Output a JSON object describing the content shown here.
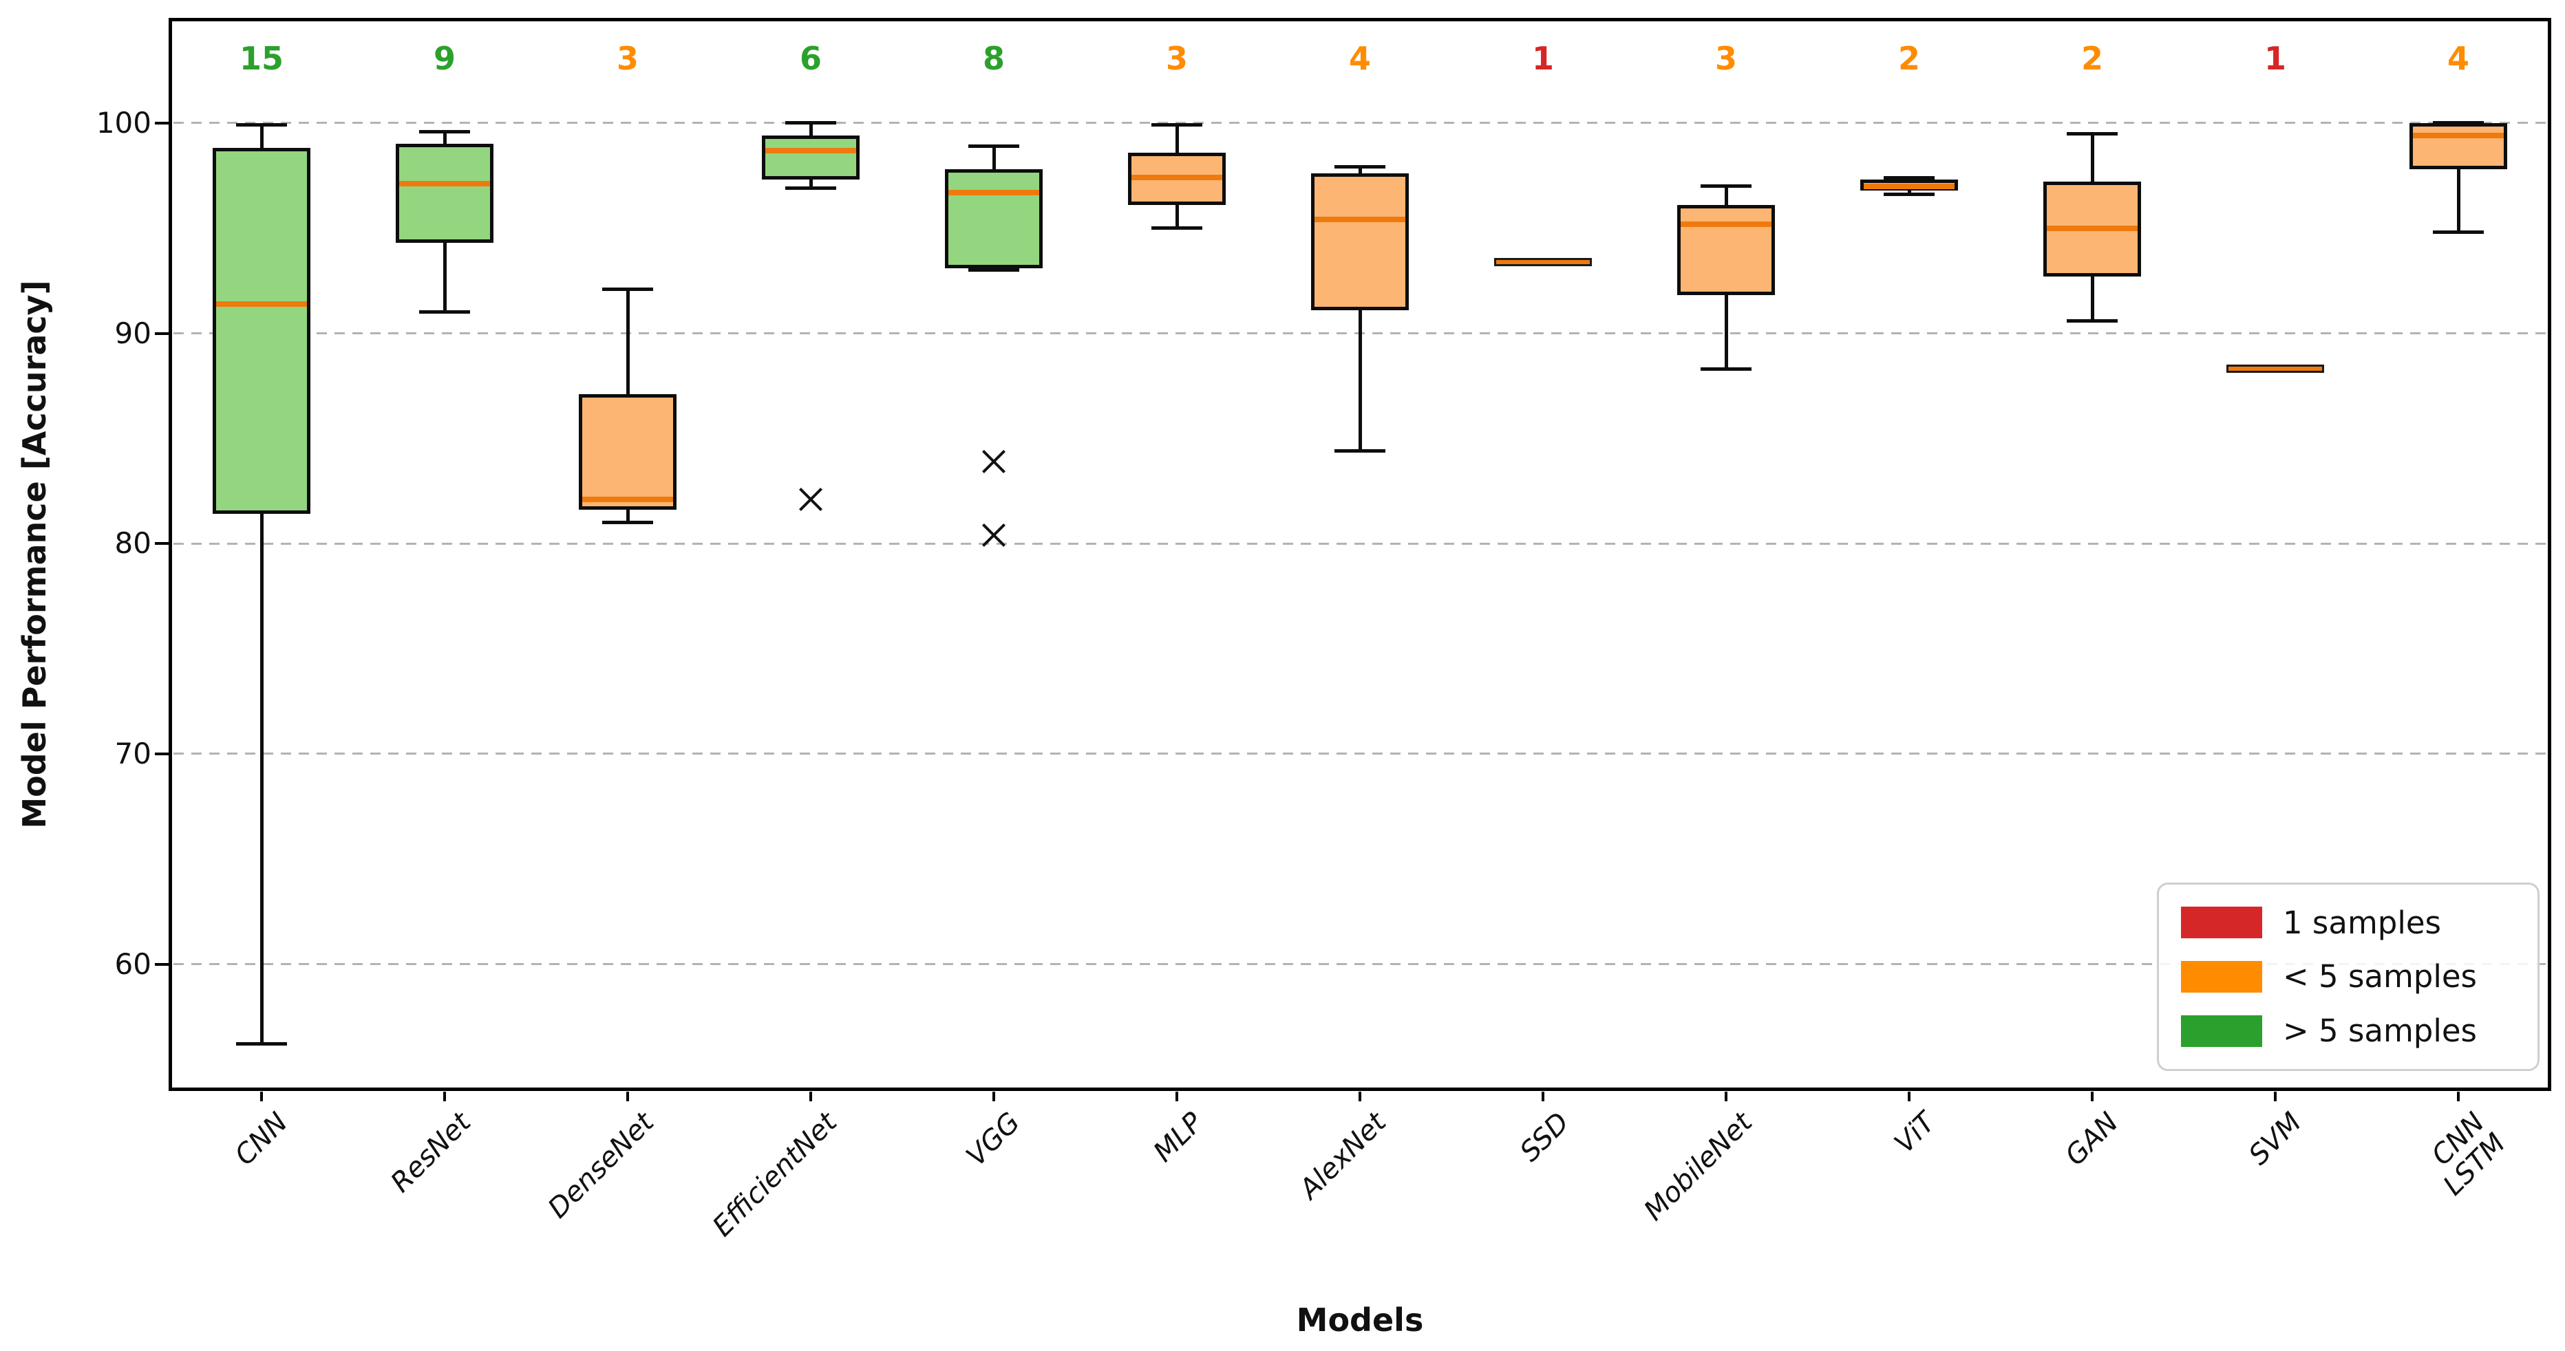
{
  "chart_data": {
    "type": "box",
    "title": "",
    "xlabel": "Models",
    "ylabel": "Model Performance [Accuracy]",
    "y_ticks": [
      100,
      90,
      80,
      70,
      60
    ],
    "ylim": [
      54.1,
      104.9
    ],
    "grid": "horizontal dashed",
    "legend_position": "lower right",
    "legend": [
      {
        "label": "1 samples",
        "swatch_color": "#d62728"
      },
      {
        "label": "< 5 samples",
        "swatch_color": "#ff8c00"
      },
      {
        "label": "> 5 samples",
        "swatch_color": "#2ca02c"
      }
    ],
    "models": [
      {
        "label": "CNN",
        "n": 15,
        "group": "gt5",
        "whisker_low": 56.2,
        "q1": 81.4,
        "median": 91.4,
        "q3": 98.8,
        "whisker_high": 99.9,
        "outliers": []
      },
      {
        "label": "ResNet",
        "n": 9,
        "group": "gt5",
        "whisker_low": 91.0,
        "q1": 94.3,
        "median": 97.1,
        "q3": 99.0,
        "whisker_high": 99.6,
        "outliers": []
      },
      {
        "label": "DenseNet",
        "n": 3,
        "group": "lt5",
        "whisker_low": 81.0,
        "q1": 81.6,
        "median": 82.1,
        "q3": 87.1,
        "whisker_high": 92.1,
        "outliers": []
      },
      {
        "label": "EfficientNet",
        "n": 6,
        "group": "gt5",
        "whisker_low": 96.9,
        "q1": 97.3,
        "median": 98.7,
        "q3": 99.4,
        "whisker_high": 100.0,
        "outliers": [
          82.1
        ]
      },
      {
        "label": "VGG",
        "n": 8,
        "group": "gt5",
        "whisker_low": 93.0,
        "q1": 93.1,
        "median": 96.7,
        "q3": 97.8,
        "whisker_high": 98.9,
        "outliers": [
          83.9,
          80.4
        ]
      },
      {
        "label": "MLP",
        "n": 3,
        "group": "lt5",
        "whisker_low": 95.0,
        "q1": 96.1,
        "median": 97.4,
        "q3": 98.6,
        "whisker_high": 99.9,
        "outliers": []
      },
      {
        "label": "AlexNet",
        "n": 4,
        "group": "lt5",
        "whisker_low": 84.4,
        "q1": 91.1,
        "median": 95.4,
        "q3": 97.6,
        "whisker_high": 97.9,
        "outliers": []
      },
      {
        "label": "SSD",
        "n": 1,
        "group": "one",
        "whisker_low": 93.4,
        "q1": 93.4,
        "median": 93.4,
        "q3": 93.4,
        "whisker_high": 93.4,
        "outliers": []
      },
      {
        "label": "MobileNet",
        "n": 3,
        "group": "lt5",
        "whisker_low": 88.3,
        "q1": 91.8,
        "median": 95.2,
        "q3": 96.1,
        "whisker_high": 97.0,
        "outliers": []
      },
      {
        "label": "ViT",
        "n": 2,
        "group": "lt5",
        "whisker_low": 96.6,
        "q1": 96.8,
        "median": 97.0,
        "q3": 97.3,
        "whisker_high": 97.4,
        "outliers": []
      },
      {
        "label": "GAN",
        "n": 2,
        "group": "lt5",
        "whisker_low": 90.6,
        "q1": 92.7,
        "median": 95.0,
        "q3": 97.2,
        "whisker_high": 99.5,
        "outliers": []
      },
      {
        "label": "SVM",
        "n": 1,
        "group": "one",
        "whisker_low": 88.3,
        "q1": 88.3,
        "median": 88.3,
        "q3": 88.3,
        "whisker_high": 88.3,
        "outliers": []
      },
      {
        "label": "CNN\nLSTM",
        "n": 4,
        "group": "lt5",
        "whisker_low": 94.8,
        "q1": 97.8,
        "median": 99.4,
        "q3": 100.0,
        "whisker_high": 100.0,
        "outliers": []
      }
    ],
    "colors": {
      "green_fill": "#93d67f",
      "orange_fill": "#fcb572",
      "median": "#ee7a0d",
      "count_green": "#2ca02c",
      "count_orange": "#ff8c00",
      "count_red": "#d62728",
      "grid": "#b3b3b3",
      "spine": "#000000"
    }
  }
}
